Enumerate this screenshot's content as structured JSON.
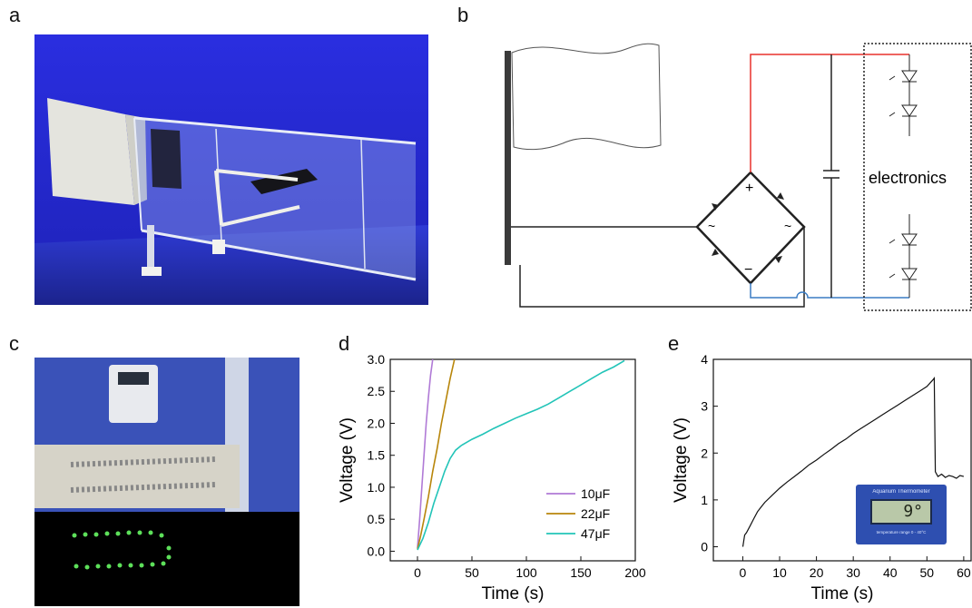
{
  "panels": {
    "a": "a",
    "b": "b",
    "c": "c",
    "d": "d",
    "e": "e"
  },
  "circuit": {
    "electronics_label": "electronics",
    "plus": "+",
    "minus": "−",
    "tilde": "~",
    "wire_positive_color": "#e8302b",
    "wire_negative_color": "#3a7cc4"
  },
  "inset": {
    "thermometer_title": "Aquarium Thermometer",
    "thermometer_reading": "9°",
    "thermometer_range": "temperature range 0 - 40°C"
  },
  "chart_data": [
    {
      "panel": "d",
      "type": "line",
      "title": "",
      "xlabel": "Time (s)",
      "ylabel": "Voltage (V)",
      "xlim": [
        -25,
        200
      ],
      "ylim": [
        -0.15,
        3.0
      ],
      "xticks": [
        0,
        50,
        100,
        150,
        200
      ],
      "xtick_labels": [
        "0",
        "50",
        "100",
        "150",
        "200"
      ],
      "yticks": [
        0.0,
        0.5,
        1.0,
        1.5,
        2.0,
        2.5,
        3.0
      ],
      "ytick_labels": [
        "0.0",
        "0.5",
        "1.0",
        "1.5",
        "2.0",
        "2.5",
        "3.0"
      ],
      "legend_position": "bottom-right",
      "series": [
        {
          "name": "10μF",
          "color": "#b07ad6",
          "x": [
            0,
            2,
            4,
            6,
            8,
            10,
            12,
            14
          ],
          "y": [
            0.05,
            0.5,
            1.0,
            1.5,
            2.0,
            2.4,
            2.75,
            3.0
          ]
        },
        {
          "name": "22μF",
          "color": "#b8860b",
          "x": [
            0,
            3,
            6,
            10,
            14,
            18,
            22,
            26,
            30,
            34
          ],
          "y": [
            0.03,
            0.25,
            0.5,
            0.85,
            1.25,
            1.6,
            2.0,
            2.35,
            2.7,
            3.0
          ]
        },
        {
          "name": "47μF",
          "color": "#22c4b8",
          "x": [
            0,
            5,
            10,
            15,
            20,
            25,
            30,
            35,
            40,
            50,
            60,
            70,
            80,
            90,
            100,
            110,
            120,
            130,
            140,
            150,
            160,
            170,
            180,
            190
          ],
          "y": [
            0.02,
            0.2,
            0.45,
            0.75,
            1.0,
            1.25,
            1.45,
            1.58,
            1.65,
            1.75,
            1.83,
            1.92,
            2.0,
            2.08,
            2.15,
            2.22,
            2.3,
            2.4,
            2.5,
            2.6,
            2.7,
            2.8,
            2.88,
            2.98
          ]
        }
      ]
    },
    {
      "panel": "e",
      "type": "line",
      "title": "",
      "xlabel": "Time (s)",
      "ylabel": "Voltage (V)",
      "xlim": [
        -8,
        62
      ],
      "ylim": [
        -0.3,
        4.0
      ],
      "xticks": [
        0,
        10,
        20,
        30,
        40,
        50,
        60
      ],
      "xtick_labels": [
        "0",
        "10",
        "20",
        "30",
        "40",
        "50",
        "60"
      ],
      "yticks": [
        0,
        1,
        2,
        3,
        4
      ],
      "ytick_labels": [
        "0",
        "1",
        "2",
        "3",
        "4"
      ],
      "series": [
        {
          "color": "#111111",
          "x": [
            0,
            0.5,
            1,
            2,
            3,
            4,
            5,
            6,
            8,
            10,
            12,
            14,
            16,
            18,
            20,
            22,
            24,
            26,
            28,
            30,
            32,
            34,
            36,
            38,
            40,
            42,
            44,
            46,
            48,
            50,
            51.5,
            52,
            52.3,
            53,
            54,
            55,
            56,
            57,
            58,
            59,
            60
          ],
          "y": [
            0.0,
            0.25,
            0.3,
            0.45,
            0.6,
            0.75,
            0.85,
            0.95,
            1.1,
            1.25,
            1.38,
            1.5,
            1.62,
            1.75,
            1.85,
            1.97,
            2.08,
            2.2,
            2.3,
            2.42,
            2.52,
            2.62,
            2.72,
            2.82,
            2.92,
            3.02,
            3.12,
            3.22,
            3.32,
            3.42,
            3.55,
            3.6,
            1.6,
            1.5,
            1.55,
            1.48,
            1.52,
            1.5,
            1.46,
            1.52,
            1.5
          ]
        }
      ]
    }
  ]
}
